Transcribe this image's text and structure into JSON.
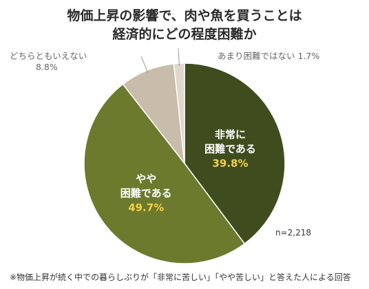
{
  "title_line1": "物価上昇の影響で、肉や魚を買うことは",
  "title_line2": "経済的にどの程度困難か",
  "n_label": "n=2,218",
  "footnote": "※物価上昇が続く中での暮らしぶりが「非常に苦しい」「やや苦しい」と答えた人による回答",
  "chart_data": {
    "type": "pie",
    "slices": [
      {
        "label_lines": [
          "非常に",
          "困難である"
        ],
        "value": 39.8,
        "value_text": "39.8%",
        "color": "#3f4d1e"
      },
      {
        "label_lines": [
          "やや",
          "困難である"
        ],
        "value": 49.7,
        "value_text": "49.7%",
        "color": "#6b7a2c"
      },
      {
        "label_lines": [
          "どちらともいえない"
        ],
        "value": 8.8,
        "value_text": "8.8%",
        "color": "#c8bcab"
      },
      {
        "label_lines": [
          "あまり困難ではない"
        ],
        "value": 1.7,
        "value_text": "1.7%",
        "color": "#e0d8cc"
      }
    ],
    "label_color": "#ffffff",
    "value_color": "#f3d24a",
    "outer_label_color": "#666666"
  }
}
